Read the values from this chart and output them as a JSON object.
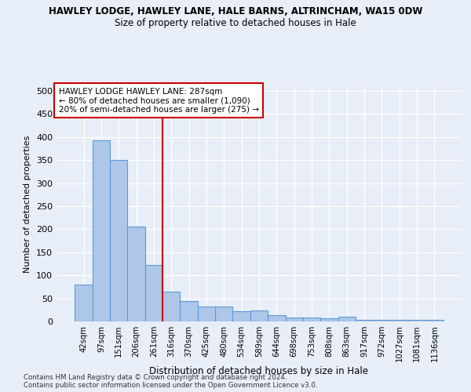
{
  "title1": "HAWLEY LODGE, HAWLEY LANE, HALE BARNS, ALTRINCHAM, WA15 0DW",
  "title2": "Size of property relative to detached houses in Hale",
  "xlabel": "Distribution of detached houses by size in Hale",
  "ylabel": "Number of detached properties",
  "categories": [
    "42sqm",
    "97sqm",
    "151sqm",
    "206sqm",
    "261sqm",
    "316sqm",
    "370sqm",
    "425sqm",
    "480sqm",
    "534sqm",
    "589sqm",
    "644sqm",
    "698sqm",
    "753sqm",
    "808sqm",
    "863sqm",
    "917sqm",
    "972sqm",
    "1027sqm",
    "1081sqm",
    "1136sqm"
  ],
  "values": [
    80,
    393,
    350,
    206,
    123,
    64,
    44,
    33,
    33,
    22,
    23,
    14,
    9,
    9,
    7,
    10,
    4,
    3,
    3,
    3,
    4
  ],
  "bar_color": "#aec6e8",
  "bar_edge_color": "#5b9bd5",
  "vline_x": 4.5,
  "vline_color": "#cc0000",
  "annotation_text": "HAWLEY LODGE HAWLEY LANE: 287sqm\n← 80% of detached houses are smaller (1,090)\n20% of semi-detached houses are larger (275) →",
  "annotation_box_color": "#ffffff",
  "annotation_box_edge": "#cc0000",
  "footer1": "Contains HM Land Registry data © Crown copyright and database right 2024.",
  "footer2": "Contains public sector information licensed under the Open Government Licence v3.0.",
  "ylim": [
    0,
    510
  ],
  "yticks": [
    0,
    50,
    100,
    150,
    200,
    250,
    300,
    350,
    400,
    450,
    500
  ],
  "background_color": "#e8eef7",
  "grid_color": "#ffffff"
}
